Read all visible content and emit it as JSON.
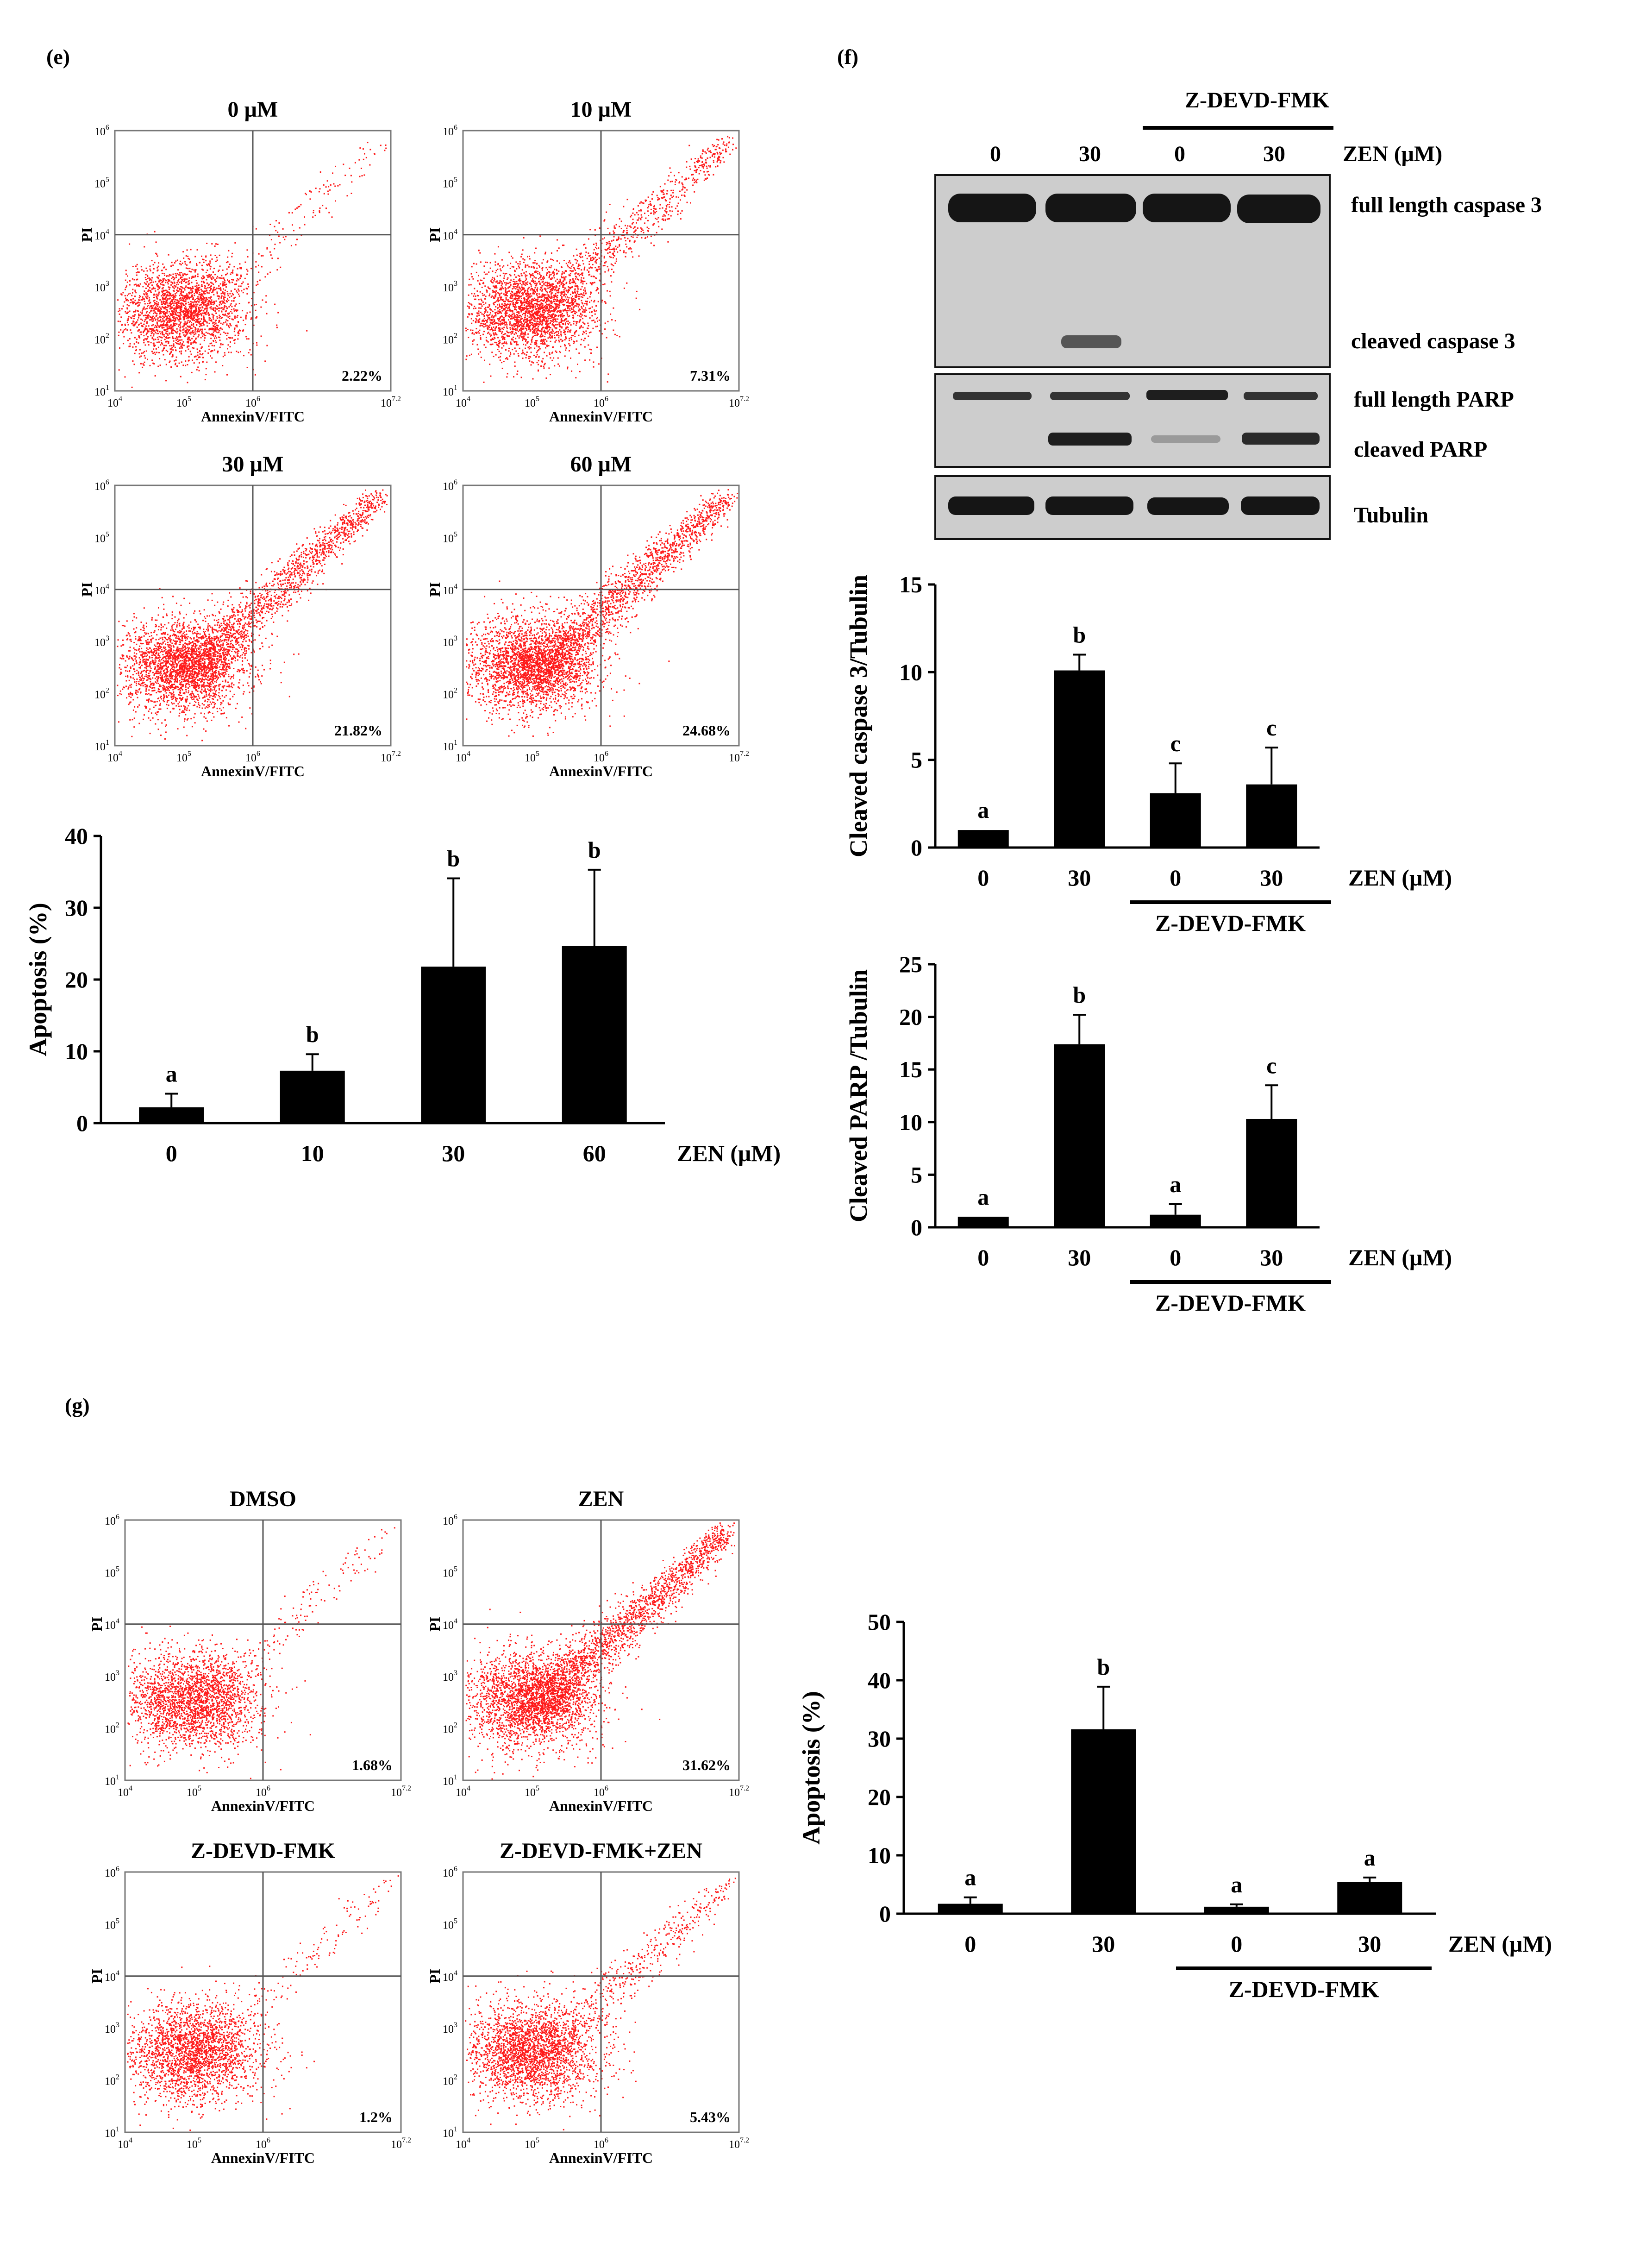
{
  "panel_labels": {
    "e": "(e)",
    "f": "(f)",
    "g": "(g)"
  },
  "flow_axis": {
    "ylabel": "PI",
    "xlabel": "AnnexinV/FITC",
    "yticks": [
      {
        "b": "10",
        "e": "1"
      },
      {
        "b": "10",
        "e": "2"
      },
      {
        "b": "10",
        "e": "3"
      },
      {
        "b": "10",
        "e": "4"
      },
      {
        "b": "10",
        "e": "5"
      },
      {
        "b": "10",
        "e": "6"
      }
    ],
    "xticks": [
      {
        "b": "10",
        "e": "4"
      },
      {
        "b": "10",
        "e": "5"
      },
      {
        "b": "10",
        "e": "6"
      },
      {
        "b": "10",
        "e": "7.2"
      }
    ]
  },
  "flow_plots": [
    {
      "id": "e1",
      "title": "0 µM",
      "percent": "2.22%",
      "spread": 0.0
    },
    {
      "id": "e2",
      "title": "10 µM",
      "percent": "7.31%",
      "spread": 0.45
    },
    {
      "id": "e3",
      "title": "30 µM",
      "percent": "21.82%",
      "spread": 1.0
    },
    {
      "id": "e4",
      "title": "60 µM",
      "percent": "24.68%",
      "spread": 1.1
    },
    {
      "id": "g1",
      "title": "DMSO",
      "percent": "1.68%",
      "spread": 0.0
    },
    {
      "id": "g2",
      "title": "ZEN",
      "percent": "31.62%",
      "spread": 1.25
    },
    {
      "id": "g3",
      "title": "Z-DEVD-FMK",
      "percent": "1.2%",
      "spread": 0.0
    },
    {
      "id": "g4",
      "title": "Z-DEVD-FMK+ZEN",
      "percent": "5.43%",
      "spread": 0.25
    }
  ],
  "western": {
    "header_inhibitor": "Z-DEVD-FMK",
    "lane_labels": [
      "0",
      "30",
      "0",
      "30"
    ],
    "dose_label": "ZEN (μM)",
    "bands": [
      "full length caspase 3",
      "cleaved caspase 3",
      "full length PARP",
      "cleaved  PARP",
      "Tubulin"
    ]
  },
  "chart_data": [
    {
      "id": "e-apoptosis",
      "type": "bar",
      "title": "",
      "ylabel": "Apoptosis (%)",
      "xlabel": "ZEN (μM)",
      "categories": [
        "0",
        "10",
        "30",
        "60"
      ],
      "values": [
        2.2,
        7.3,
        21.8,
        24.7
      ],
      "errors": [
        1.9,
        2.3,
        12.3,
        10.6
      ],
      "letters": [
        "a",
        "b",
        "b",
        "b"
      ],
      "ylim": [
        0,
        40
      ],
      "yticks": [
        0,
        10,
        20,
        30,
        40
      ],
      "group_label": ""
    },
    {
      "id": "f-caspase",
      "type": "bar",
      "title": "",
      "ylabel": "Cleaved caspase 3/Tubulin",
      "xlabel": "ZEN (μM)",
      "categories": [
        "0",
        "30",
        "0",
        "30"
      ],
      "values": [
        1.0,
        10.1,
        3.1,
        3.6
      ],
      "errors": [
        0.0,
        0.9,
        1.7,
        2.1
      ],
      "letters": [
        "a",
        "b",
        "c",
        "c"
      ],
      "ylim": [
        0,
        15
      ],
      "yticks": [
        0,
        5,
        10,
        15
      ],
      "group_label": "Z-DEVD-FMK"
    },
    {
      "id": "f-parp",
      "type": "bar",
      "title": "",
      "ylabel": "Cleaved PARP /Tubulin",
      "xlabel": "ZEN (μM)",
      "categories": [
        "0",
        "30",
        "0",
        "30"
      ],
      "values": [
        1.0,
        17.4,
        1.2,
        10.3
      ],
      "errors": [
        0.0,
        2.8,
        1.0,
        3.2
      ],
      "letters": [
        "a",
        "b",
        "a",
        "c"
      ],
      "ylim": [
        0,
        25
      ],
      "yticks": [
        0,
        5,
        10,
        15,
        20,
        25
      ],
      "group_label": "Z-DEVD-FMK"
    },
    {
      "id": "g-apoptosis",
      "type": "bar",
      "title": "",
      "ylabel": "Apoptosis (%)",
      "xlabel": "ZEN (μM)",
      "categories": [
        "0",
        "30",
        "0",
        "30"
      ],
      "values": [
        1.7,
        31.6,
        1.2,
        5.4
      ],
      "errors": [
        1.1,
        7.3,
        0.4,
        0.8
      ],
      "letters": [
        "a",
        "b",
        "a",
        "a"
      ],
      "ylim": [
        0,
        50
      ],
      "yticks": [
        0,
        10,
        20,
        30,
        40,
        50
      ],
      "group_label": "Z-DEVD-FMK"
    }
  ]
}
